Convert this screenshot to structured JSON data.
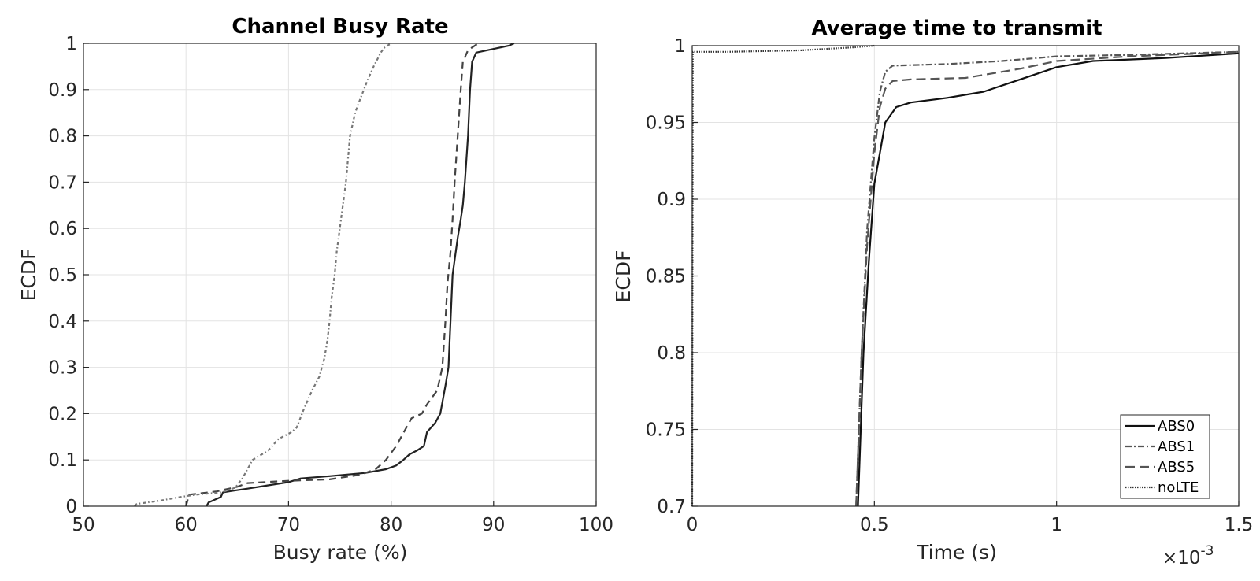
{
  "chart_data": [
    {
      "type": "line",
      "title": "Channel Busy Rate",
      "xlabel": "Busy rate (%)",
      "ylabel": "ECDF",
      "xlim": [
        50,
        100
      ],
      "ylim": [
        0,
        1
      ],
      "xticks": [
        "50",
        "60",
        "70",
        "80",
        "90",
        "100"
      ],
      "yticks": [
        "0",
        "0.1",
        "0.2",
        "0.3",
        "0.4",
        "0.5",
        "0.6",
        "0.7",
        "0.8",
        "0.9",
        "1"
      ],
      "grid": true,
      "legend": "none",
      "series": [
        {
          "color": "#222222",
          "dash": "none",
          "points": [
            [
              62.0,
              0.0
            ],
            [
              62.2,
              0.008
            ],
            [
              63.4,
              0.02
            ],
            [
              63.6,
              0.03
            ],
            [
              64.5,
              0.033
            ],
            [
              66.0,
              0.038
            ],
            [
              68.0,
              0.045
            ],
            [
              70.0,
              0.052
            ],
            [
              71.2,
              0.06
            ],
            [
              74.0,
              0.065
            ],
            [
              77.5,
              0.072
            ],
            [
              79.5,
              0.08
            ],
            [
              80.5,
              0.088
            ],
            [
              81.2,
              0.1
            ],
            [
              81.8,
              0.112
            ],
            [
              82.5,
              0.12
            ],
            [
              83.2,
              0.13
            ],
            [
              83.5,
              0.16
            ],
            [
              84.3,
              0.18
            ],
            [
              84.8,
              0.2
            ],
            [
              85.3,
              0.26
            ],
            [
              85.6,
              0.3
            ],
            [
              85.8,
              0.4
            ],
            [
              86.0,
              0.5
            ],
            [
              86.5,
              0.58
            ],
            [
              86.8,
              0.62
            ],
            [
              87.0,
              0.65
            ],
            [
              87.2,
              0.7
            ],
            [
              87.5,
              0.8
            ],
            [
              87.7,
              0.9
            ],
            [
              87.9,
              0.96
            ],
            [
              88.3,
              0.98
            ],
            [
              91.5,
              0.995
            ],
            [
              92.0,
              1.0
            ]
          ]
        },
        {
          "color": "#444444",
          "dash": "9,6",
          "points": [
            [
              60.0,
              0.0
            ],
            [
              60.3,
              0.025
            ],
            [
              63.0,
              0.032
            ],
            [
              65.0,
              0.042
            ],
            [
              66.0,
              0.05
            ],
            [
              70.0,
              0.055
            ],
            [
              74.0,
              0.058
            ],
            [
              77.0,
              0.068
            ],
            [
              78.5,
              0.08
            ],
            [
              79.5,
              0.1
            ],
            [
              80.5,
              0.13
            ],
            [
              81.5,
              0.17
            ],
            [
              82.0,
              0.19
            ],
            [
              83.0,
              0.2
            ],
            [
              83.5,
              0.22
            ],
            [
              84.5,
              0.25
            ],
            [
              85.0,
              0.3
            ],
            [
              85.3,
              0.4
            ],
            [
              85.5,
              0.48
            ],
            [
              85.8,
              0.55
            ],
            [
              86.0,
              0.62
            ],
            [
              86.2,
              0.7
            ],
            [
              86.5,
              0.8
            ],
            [
              86.8,
              0.9
            ],
            [
              87.0,
              0.96
            ],
            [
              87.5,
              0.985
            ],
            [
              88.5,
              1.0
            ]
          ]
        },
        {
          "color": "#777777",
          "dash": "4,3,1.5,3",
          "points": [
            [
              55.0,
              0.0
            ],
            [
              55.2,
              0.005
            ],
            [
              57.5,
              0.012
            ],
            [
              59.5,
              0.02
            ],
            [
              61.0,
              0.025
            ],
            [
              63.5,
              0.03
            ],
            [
              64.8,
              0.04
            ],
            [
              65.5,
              0.06
            ],
            [
              66.0,
              0.08
            ],
            [
              66.5,
              0.1
            ],
            [
              68.0,
              0.12
            ],
            [
              69.0,
              0.145
            ],
            [
              70.3,
              0.16
            ],
            [
              70.8,
              0.17
            ],
            [
              71.5,
              0.21
            ],
            [
              72.3,
              0.25
            ],
            [
              73.0,
              0.28
            ],
            [
              73.5,
              0.32
            ],
            [
              73.8,
              0.36
            ],
            [
              74.0,
              0.4
            ],
            [
              74.2,
              0.45
            ],
            [
              74.5,
              0.5
            ],
            [
              74.7,
              0.55
            ],
            [
              75.0,
              0.6
            ],
            [
              75.3,
              0.65
            ],
            [
              75.6,
              0.7
            ],
            [
              75.8,
              0.75
            ],
            [
              76.0,
              0.8
            ],
            [
              76.5,
              0.85
            ],
            [
              77.0,
              0.88
            ],
            [
              77.7,
              0.92
            ],
            [
              78.3,
              0.95
            ],
            [
              79.0,
              0.98
            ],
            [
              79.3,
              0.99
            ],
            [
              80.0,
              1.0
            ]
          ]
        }
      ]
    },
    {
      "type": "line",
      "title": "Average time to transmit",
      "xlabel": "Time (s)",
      "ylabel": "ECDF",
      "xlim": [
        0,
        0.0015
      ],
      "ylim": [
        0.7,
        1
      ],
      "xticks": [
        "0",
        "0.5",
        "1",
        "1.5"
      ],
      "yticks": [
        "0.7",
        "0.75",
        "0.8",
        "0.85",
        "0.9",
        "0.95",
        "1"
      ],
      "x_multiplier": "×10",
      "x_multiplier_exponent": "-3",
      "grid": true,
      "legend": "bottom-right",
      "series": [
        {
          "name": "ABS0",
          "color": "#111111",
          "dash": "none",
          "points": [
            [
              0.000455,
              0.7
            ],
            [
              0.00047,
              0.8
            ],
            [
              0.000485,
              0.86
            ],
            [
              0.0005,
              0.91
            ],
            [
              0.000515,
              0.93
            ],
            [
              0.00053,
              0.95
            ],
            [
              0.00056,
              0.96
            ],
            [
              0.0006,
              0.963
            ],
            [
              0.0007,
              0.966
            ],
            [
              0.0008,
              0.97
            ],
            [
              0.0009,
              0.978
            ],
            [
              0.001,
              0.986
            ],
            [
              0.0011,
              0.99
            ],
            [
              0.0012,
              0.991
            ],
            [
              0.0013,
              0.992
            ],
            [
              0.0015,
              0.995
            ]
          ]
        },
        {
          "name": "ABS1",
          "color": "#555555",
          "dash": "8,3,2,3",
          "points": [
            [
              0.00045,
              0.7
            ],
            [
              0.000465,
              0.8
            ],
            [
              0.00048,
              0.88
            ],
            [
              0.0005,
              0.94
            ],
            [
              0.000515,
              0.97
            ],
            [
              0.00053,
              0.983
            ],
            [
              0.00055,
              0.987
            ],
            [
              0.0007,
              0.988
            ],
            [
              0.00085,
              0.99
            ],
            [
              0.001,
              0.993
            ],
            [
              0.0012,
              0.994
            ],
            [
              0.0015,
              0.996
            ]
          ]
        },
        {
          "name": "ABS5",
          "color": "#555555",
          "dash": "12,6",
          "points": [
            [
              0.00045,
              0.7
            ],
            [
              0.000465,
              0.8
            ],
            [
              0.00048,
              0.87
            ],
            [
              0.0005,
              0.93
            ],
            [
              0.000515,
              0.96
            ],
            [
              0.00053,
              0.972
            ],
            [
              0.00055,
              0.977
            ],
            [
              0.0006,
              0.978
            ],
            [
              0.00075,
              0.979
            ],
            [
              0.0009,
              0.985
            ],
            [
              0.001,
              0.99
            ],
            [
              0.0012,
              0.993
            ],
            [
              0.0015,
              0.996
            ]
          ]
        },
        {
          "name": "noLTE",
          "color": "#333333",
          "dash": "1.5,1.5",
          "points": [
            [
              0.0,
              0.7
            ],
            [
              1.5e-06,
              0.996
            ],
            [
              0.0001,
              0.996
            ],
            [
              0.0003,
              0.997
            ],
            [
              0.00045,
              0.999
            ],
            [
              0.0005,
              1.0
            ]
          ]
        }
      ]
    }
  ]
}
